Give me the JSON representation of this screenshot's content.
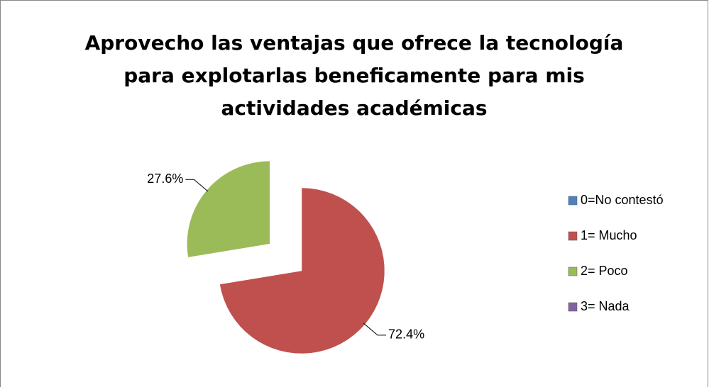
{
  "chart_data": {
    "type": "pie",
    "title": "Aprovecho las ventajas que ofrece la tecnología para explotarlas beneficamente para mis actividades académicas",
    "categories": [
      "0=No contestó",
      "1= Mucho",
      "2= Poco",
      "3= Nada"
    ],
    "values": [
      0,
      72.4,
      27.6,
      0
    ],
    "value_labels": [
      null,
      "72.4%",
      "27.6%",
      null
    ],
    "colors": [
      "#4f81bd",
      "#c0504d",
      "#9bbb59",
      "#8064a2"
    ],
    "explode": [
      0,
      0,
      0.5,
      0
    ],
    "legend": "right"
  }
}
